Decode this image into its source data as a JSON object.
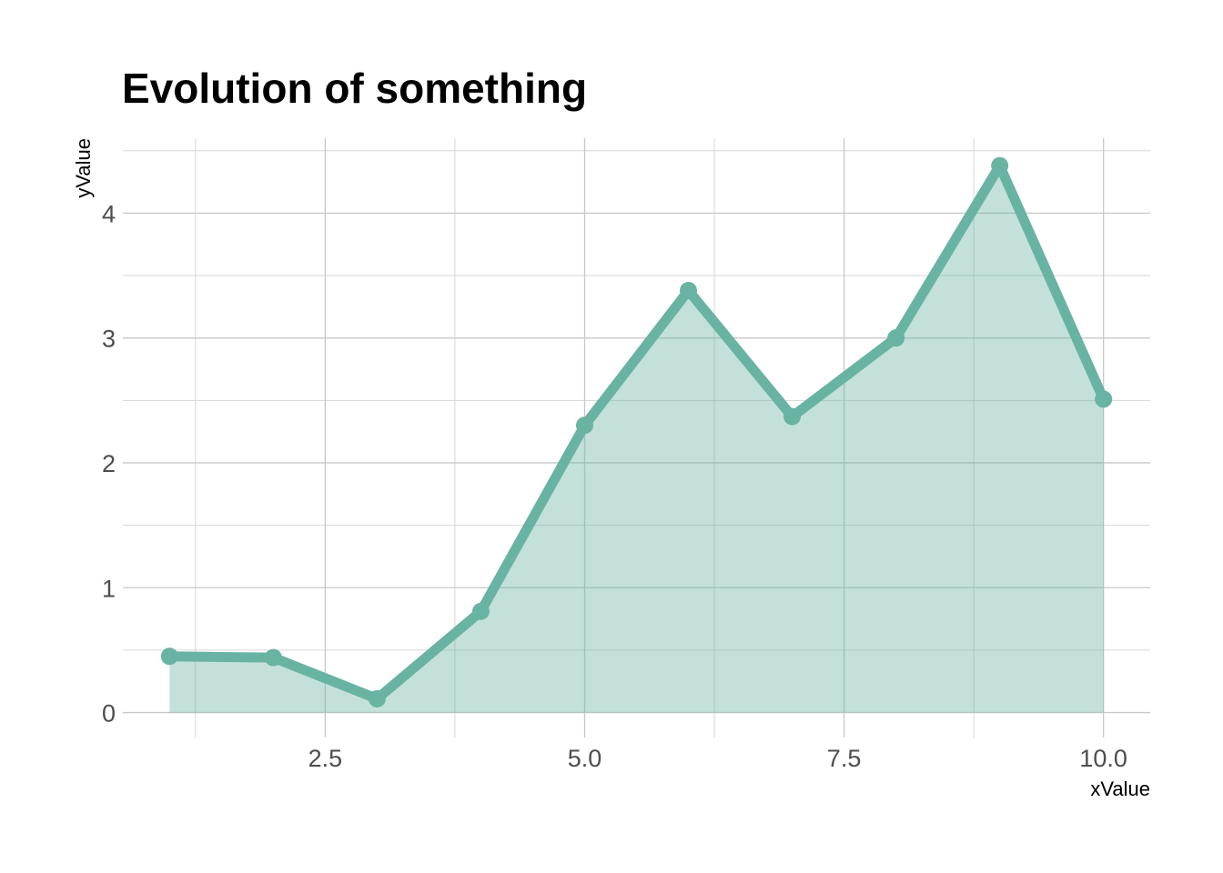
{
  "chart_data": {
    "type": "area",
    "title": "Evolution of something",
    "xlabel": "xValue",
    "ylabel": "yValue",
    "x": [
      1,
      2,
      3,
      4,
      5,
      6,
      7,
      8,
      9,
      10
    ],
    "y": [
      0.45,
      0.44,
      0.11,
      0.81,
      2.3,
      3.38,
      2.37,
      3.0,
      4.38,
      2.51
    ],
    "xlim": [
      0.55,
      10.45
    ],
    "ylim": [
      -0.2,
      4.6
    ],
    "x_ticks": [
      2.5,
      5.0,
      7.5,
      10.0
    ],
    "x_tick_labels": [
      "2.5",
      "5.0",
      "7.5",
      "10.0"
    ],
    "y_ticks": [
      0,
      1,
      2,
      3,
      4
    ],
    "y_tick_labels": [
      "0",
      "1",
      "2",
      "3",
      "4"
    ],
    "grid": true,
    "legend": "none",
    "line_color": "#69b3a2",
    "fill_color": "#69b3a2",
    "fill_opacity": 0.4
  }
}
